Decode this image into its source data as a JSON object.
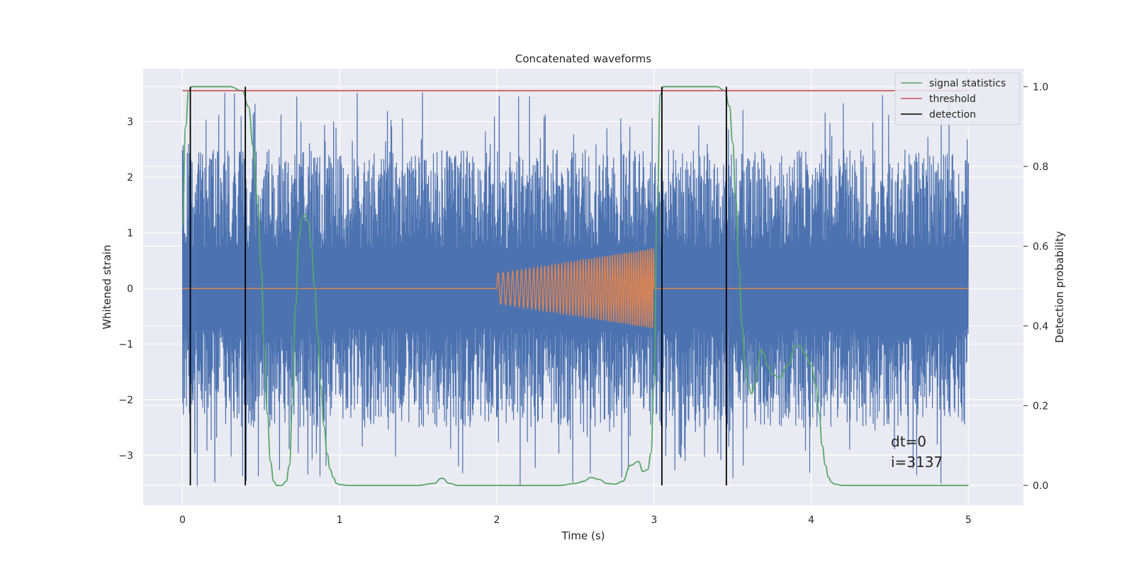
{
  "chart_data": {
    "type": "line",
    "title": "Concatenated waveforms",
    "xlabel": "Time (s)",
    "ylabel": "Whitened strain",
    "y2label": "Detection probability",
    "xlim": [
      -0.25,
      5.35
    ],
    "ylim": [
      -3.9,
      3.95
    ],
    "y2lim": [
      -0.05,
      1.045
    ],
    "xticks": [
      0,
      1,
      2,
      3,
      4,
      5
    ],
    "xtick_labels": [
      "0",
      "1",
      "2",
      "3",
      "4",
      "5"
    ],
    "yticks": [
      -3,
      -2,
      -1,
      0,
      1,
      2,
      3
    ],
    "ytick_labels": [
      "−3",
      "−2",
      "−1",
      "0",
      "1",
      "2",
      "3"
    ],
    "y2ticks": [
      0.0,
      0.2,
      0.4,
      0.6,
      0.8,
      1.0
    ],
    "y2tick_labels": [
      "0.0",
      "0.2",
      "0.4",
      "0.6",
      "0.8",
      "1.0"
    ],
    "grid": true,
    "legend_position": "top-right",
    "colors": {
      "strain": "#4c72b0",
      "injection": "#dd8452",
      "signal_statistics": "#55a868",
      "threshold": "#c44e52",
      "detection": "#000000",
      "background": "#eaeaf2",
      "grid": "#ffffff"
    },
    "series": [
      {
        "name": "signal statistics",
        "axis": "right",
        "x": [
          0.0,
          0.02,
          0.04,
          0.06,
          0.08,
          0.3,
          0.38,
          0.42,
          0.45,
          0.48,
          0.5,
          0.52,
          0.54,
          0.56,
          0.58,
          0.6,
          0.63,
          0.66,
          0.68,
          0.7,
          0.72,
          0.74,
          0.76,
          0.78,
          0.8,
          0.82,
          0.84,
          0.86,
          0.88,
          0.9,
          0.92,
          0.94,
          0.96,
          0.98,
          1.0,
          1.05,
          1.1,
          1.5,
          1.6,
          1.65,
          1.7,
          1.75,
          2.0,
          2.4,
          2.5,
          2.55,
          2.6,
          2.65,
          2.7,
          2.75,
          2.8,
          2.85,
          2.9,
          2.93,
          2.96,
          2.98,
          3.0,
          3.02,
          3.04,
          3.06,
          3.1,
          3.4,
          3.45,
          3.48,
          3.5,
          3.52,
          3.54,
          3.56,
          3.58,
          3.6,
          3.62,
          3.64,
          3.66,
          3.68,
          3.7,
          3.72,
          3.75,
          3.8,
          3.85,
          3.9,
          3.93,
          3.96,
          4.0,
          4.03,
          4.05,
          4.07,
          4.09,
          4.11,
          4.13,
          4.15,
          4.2,
          4.4,
          5.0
        ],
        "y": [
          0.65,
          0.9,
          0.99,
          1.0,
          1.0,
          1.0,
          0.99,
          0.95,
          0.85,
          0.7,
          0.55,
          0.35,
          0.18,
          0.06,
          0.01,
          0.0,
          0.0,
          0.01,
          0.05,
          0.2,
          0.45,
          0.62,
          0.67,
          0.68,
          0.66,
          0.6,
          0.5,
          0.38,
          0.25,
          0.15,
          0.08,
          0.04,
          0.02,
          0.005,
          0.002,
          0.0,
          0.0,
          0.0,
          0.005,
          0.018,
          0.005,
          0.0,
          0.0,
          0.0,
          0.005,
          0.01,
          0.02,
          0.015,
          0.005,
          0.003,
          0.01,
          0.05,
          0.06,
          0.035,
          0.04,
          0.08,
          0.25,
          0.7,
          0.98,
          1.0,
          1.0,
          1.0,
          0.99,
          0.95,
          0.86,
          0.72,
          0.55,
          0.4,
          0.3,
          0.25,
          0.23,
          0.25,
          0.3,
          0.34,
          0.33,
          0.3,
          0.28,
          0.27,
          0.3,
          0.35,
          0.35,
          0.33,
          0.3,
          0.25,
          0.18,
          0.1,
          0.05,
          0.02,
          0.008,
          0.003,
          0.0,
          0.0,
          0.0
        ]
      },
      {
        "name": "threshold",
        "axis": "right",
        "x": [
          0,
          5
        ],
        "y": [
          0.99,
          0.99
        ]
      },
      {
        "name": "detection",
        "axis": "left",
        "x": [
          0.05,
          0.4,
          3.05,
          3.46
        ]
      }
    ],
    "strain_noise": {
      "axis": "left",
      "x_range": [
        0,
        5
      ],
      "core_band": [
        -0.72,
        0.72
      ],
      "typical_extreme": 2.5,
      "max_extreme": 3.55
    },
    "injected_waveform": {
      "axis": "left",
      "x_range": [
        2.0,
        3.0
      ],
      "amplitude_start": 0.27,
      "amplitude_end": 0.72,
      "frequency_start": 30,
      "frequency_end": 75
    }
  },
  "legend": {
    "items": [
      {
        "label": "signal statistics",
        "color": "#55a868"
      },
      {
        "label": "threshold",
        "color": "#c44e52"
      },
      {
        "label": "detection",
        "color": "#000000"
      }
    ]
  },
  "annotation": {
    "line1": "dt=0",
    "line2": "i=3137"
  }
}
